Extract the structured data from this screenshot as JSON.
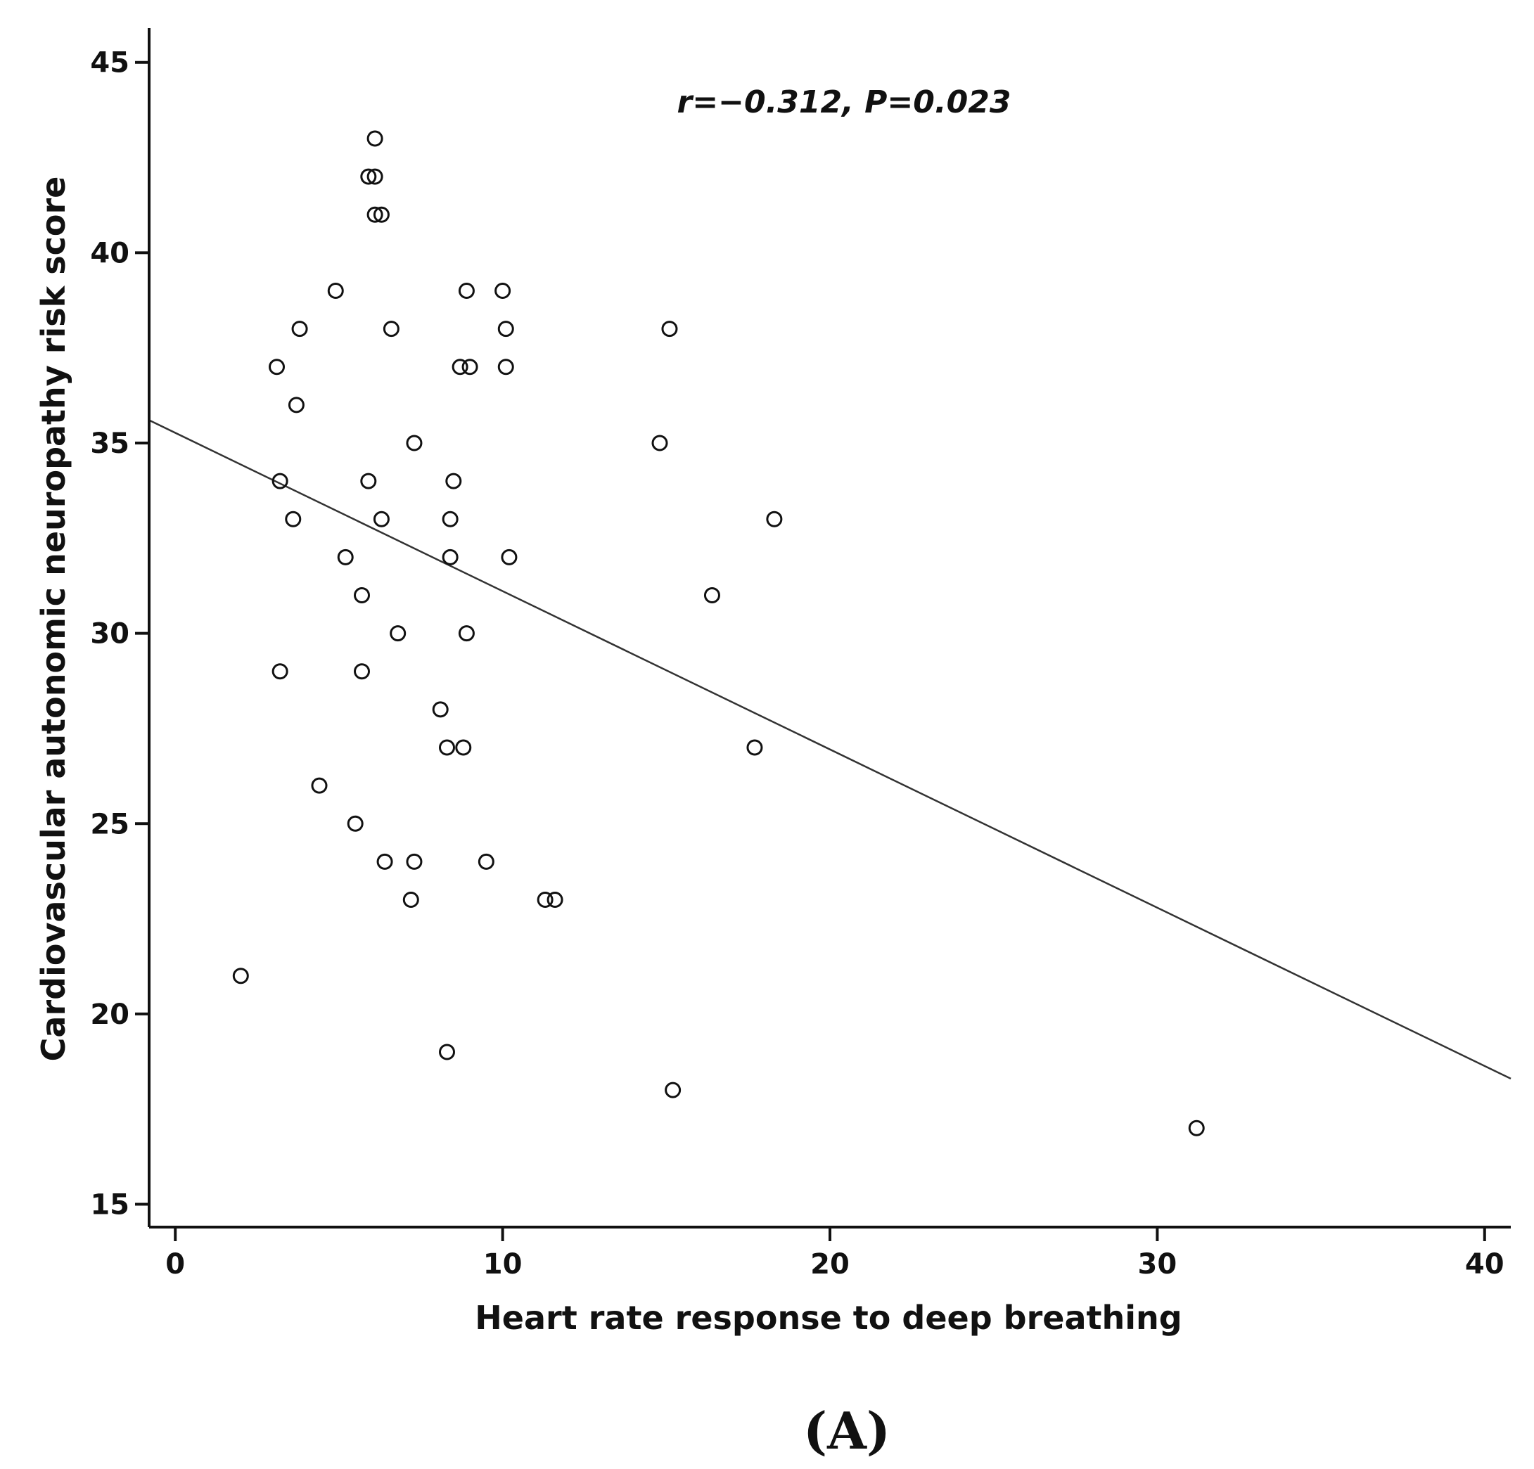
{
  "chart_data": {
    "type": "scatter",
    "title": "",
    "xlabel": "Heart rate response to deep breathing",
    "ylabel": "Cardiovascular autonomic neuropathy risk score",
    "xlim": [
      -0.8,
      40.8
    ],
    "ylim": [
      14.4,
      45.9
    ],
    "x_ticks": [
      0,
      10,
      20,
      30,
      40
    ],
    "x_tick_labels": [
      "0",
      "10",
      "20",
      "30",
      "40"
    ],
    "y_ticks": [
      15,
      20,
      25,
      30,
      35,
      40,
      45
    ],
    "y_tick_labels": [
      "15",
      "20",
      "25",
      "30",
      "35",
      "40",
      "45"
    ],
    "grid": false,
    "annotation": "r=−0.312, P=0.023",
    "panel_label": "(A)",
    "marker": "open-circle",
    "colors": {
      "marker": "#111111",
      "axis": "#111111",
      "fit_line": "#333333"
    },
    "fit_line": {
      "x": [
        -0.8,
        40.8
      ],
      "y": [
        35.6,
        18.3
      ]
    },
    "points": [
      {
        "x": 6.1,
        "y": 43
      },
      {
        "x": 5.9,
        "y": 42
      },
      {
        "x": 6.1,
        "y": 42
      },
      {
        "x": 6.1,
        "y": 41
      },
      {
        "x": 6.3,
        "y": 41
      },
      {
        "x": 4.9,
        "y": 39
      },
      {
        "x": 8.9,
        "y": 39
      },
      {
        "x": 10.0,
        "y": 39
      },
      {
        "x": 3.8,
        "y": 38
      },
      {
        "x": 6.6,
        "y": 38
      },
      {
        "x": 10.1,
        "y": 38
      },
      {
        "x": 15.1,
        "y": 38
      },
      {
        "x": 3.1,
        "y": 37
      },
      {
        "x": 8.7,
        "y": 37
      },
      {
        "x": 9.0,
        "y": 37
      },
      {
        "x": 10.1,
        "y": 37
      },
      {
        "x": 3.7,
        "y": 36
      },
      {
        "x": 7.3,
        "y": 35
      },
      {
        "x": 14.8,
        "y": 35
      },
      {
        "x": 3.2,
        "y": 34
      },
      {
        "x": 5.9,
        "y": 34
      },
      {
        "x": 8.5,
        "y": 34
      },
      {
        "x": 3.6,
        "y": 33
      },
      {
        "x": 6.3,
        "y": 33
      },
      {
        "x": 8.4,
        "y": 33
      },
      {
        "x": 18.3,
        "y": 33
      },
      {
        "x": 5.2,
        "y": 32
      },
      {
        "x": 8.4,
        "y": 32
      },
      {
        "x": 10.2,
        "y": 32
      },
      {
        "x": 5.7,
        "y": 31
      },
      {
        "x": 16.4,
        "y": 31
      },
      {
        "x": 6.8,
        "y": 30
      },
      {
        "x": 8.9,
        "y": 30
      },
      {
        "x": 3.2,
        "y": 29
      },
      {
        "x": 5.7,
        "y": 29
      },
      {
        "x": 8.1,
        "y": 28
      },
      {
        "x": 8.3,
        "y": 27
      },
      {
        "x": 8.8,
        "y": 27
      },
      {
        "x": 17.7,
        "y": 27
      },
      {
        "x": 4.4,
        "y": 26
      },
      {
        "x": 5.5,
        "y": 25
      },
      {
        "x": 6.4,
        "y": 24
      },
      {
        "x": 7.3,
        "y": 24
      },
      {
        "x": 9.5,
        "y": 24
      },
      {
        "x": 7.2,
        "y": 23
      },
      {
        "x": 11.3,
        "y": 23
      },
      {
        "x": 11.6,
        "y": 23
      },
      {
        "x": 2.0,
        "y": 21
      },
      {
        "x": 8.3,
        "y": 19
      },
      {
        "x": 15.2,
        "y": 18
      },
      {
        "x": 31.2,
        "y": 17
      }
    ]
  }
}
